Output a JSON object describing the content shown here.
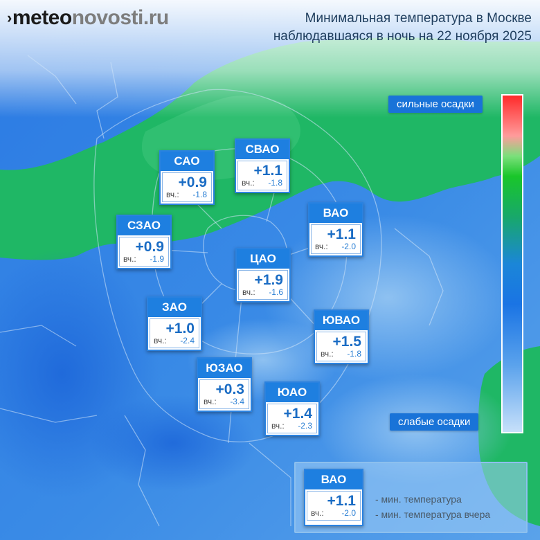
{
  "logo": {
    "bold": "meteo",
    "normal": "novosti.ru",
    "mark": "›"
  },
  "title": {
    "line1": "Минимальная температура в Москве",
    "line2": "наблюдавшаяся в ночь на 22 ноября 2025"
  },
  "scale": {
    "top_label": "сильные осадки",
    "bottom_label": "слабые осадки"
  },
  "yesterday_label": "вч.:",
  "districts": [
    {
      "name": "САО",
      "temp": "+0.9",
      "yesterday": "-1.8"
    },
    {
      "name": "СВАО",
      "temp": "+1.1",
      "yesterday": "-1.8"
    },
    {
      "name": "ВАО",
      "temp": "+1.1",
      "yesterday": "-2.0"
    },
    {
      "name": "СЗАО",
      "temp": "+0.9",
      "yesterday": "-1.9"
    },
    {
      "name": "ЦАО",
      "temp": "+1.9",
      "yesterday": "-1.6"
    },
    {
      "name": "ЗАО",
      "temp": "+1.0",
      "yesterday": "-2.4"
    },
    {
      "name": "ЮВАО",
      "temp": "+1.5",
      "yesterday": "-1.8"
    },
    {
      "name": "ЮЗАО",
      "temp": "+0.3",
      "yesterday": "-3.4"
    },
    {
      "name": "ЮАО",
      "temp": "+1.4",
      "yesterday": "-2.3"
    }
  ],
  "legend": {
    "sample": {
      "name": "ВАО",
      "temp": "+1.1",
      "yesterday": "-2.0"
    },
    "min_temp": "- мин. температура",
    "min_temp_yesterday": "- мин. температура вчера"
  },
  "colors": {
    "ocean_blue": "#2f7fe0",
    "precip_green": "#1fb765",
    "card_header": "#1e7fe0"
  }
}
